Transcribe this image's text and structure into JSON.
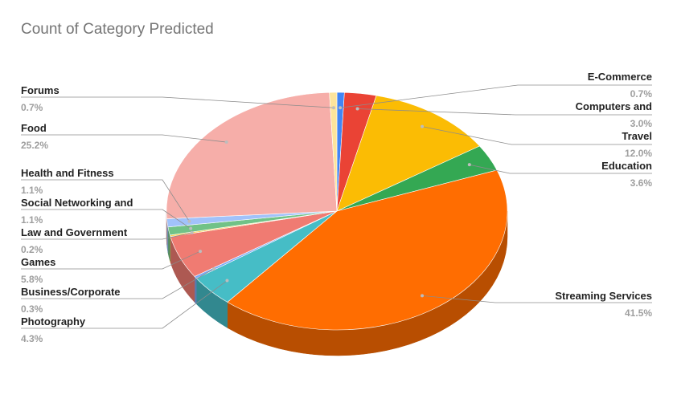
{
  "chart_data": {
    "type": "pie",
    "title": "Count of Category Predicted",
    "slices": [
      {
        "label": "E-Commerce",
        "pct_label": "0.7%",
        "value": 0.7,
        "color": "#4285f4"
      },
      {
        "label": "Computers and",
        "pct_label": "3.0%",
        "value": 3.0,
        "color": "#ea4335"
      },
      {
        "label": "Travel",
        "pct_label": "12.0%",
        "value": 12.0,
        "color": "#fbbc04"
      },
      {
        "label": "Education",
        "pct_label": "3.6%",
        "value": 3.6,
        "color": "#34a853"
      },
      {
        "label": "Streaming Services",
        "pct_label": "41.5%",
        "value": 41.5,
        "color": "#ff6d01"
      },
      {
        "label": "Photography",
        "pct_label": "4.3%",
        "value": 4.3,
        "color": "#46bdc6"
      },
      {
        "label": "Business/Corporate",
        "pct_label": "0.3%",
        "value": 0.3,
        "color": "#7baaf7"
      },
      {
        "label": "Games",
        "pct_label": "5.8%",
        "value": 5.8,
        "color": "#f07b72"
      },
      {
        "label": "Law and Government",
        "pct_label": "0.2%",
        "value": 0.2,
        "color": "#fcd04f"
      },
      {
        "label": "Social Networking and",
        "pct_label": "1.1%",
        "value": 1.1,
        "color": "#71c287"
      },
      {
        "label": "Health and Fitness",
        "pct_label": "1.1%",
        "value": 1.1,
        "color": "#a1c2fa"
      },
      {
        "label": "Food",
        "pct_label": "25.2%",
        "value": 25.2,
        "color": "#f6aea9"
      },
      {
        "label": "Forums",
        "pct_label": "0.7%",
        "value": 0.7,
        "color": "#fde49b"
      }
    ],
    "legend": "none",
    "style": "3d"
  }
}
